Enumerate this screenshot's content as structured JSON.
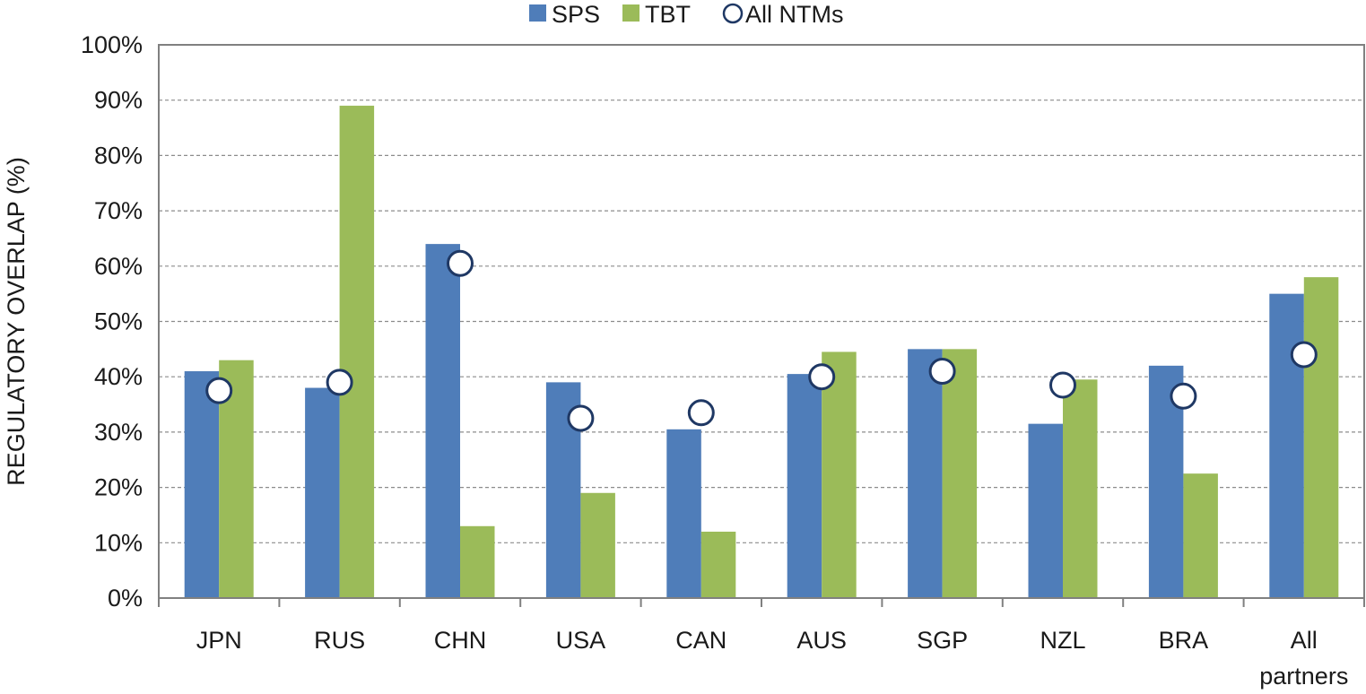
{
  "chart_data": {
    "type": "bar",
    "ylabel": "REGULATORY OVERLAP (%)",
    "xlabel": "",
    "ylim": [
      0,
      100
    ],
    "yticks": [
      "0%",
      "10%",
      "20%",
      "30%",
      "40%",
      "50%",
      "60%",
      "70%",
      "80%",
      "90%",
      "100%"
    ],
    "grid": "horizontal dashed",
    "legend_position": "top-center",
    "categories": [
      "JPN",
      "RUS",
      "CHN",
      "USA",
      "CAN",
      "AUS",
      "SGP",
      "NZL",
      "BRA",
      "All partners"
    ],
    "series": [
      {
        "name": "SPS",
        "kind": "bar",
        "color": "#4f7db9",
        "values": [
          41,
          38,
          64,
          39,
          30.5,
          40.5,
          45,
          31.5,
          42,
          55
        ]
      },
      {
        "name": "TBT",
        "kind": "bar",
        "color": "#9bbb59",
        "values": [
          43,
          89,
          13,
          19,
          12,
          44.5,
          45,
          39.5,
          22.5,
          58
        ]
      },
      {
        "name": "All NTMs",
        "kind": "marker",
        "marker": "hollow-circle",
        "color": "#1f3864",
        "values": [
          37.5,
          39,
          60.5,
          32.5,
          33.5,
          40,
          41,
          38.5,
          36.5,
          44
        ]
      }
    ]
  }
}
